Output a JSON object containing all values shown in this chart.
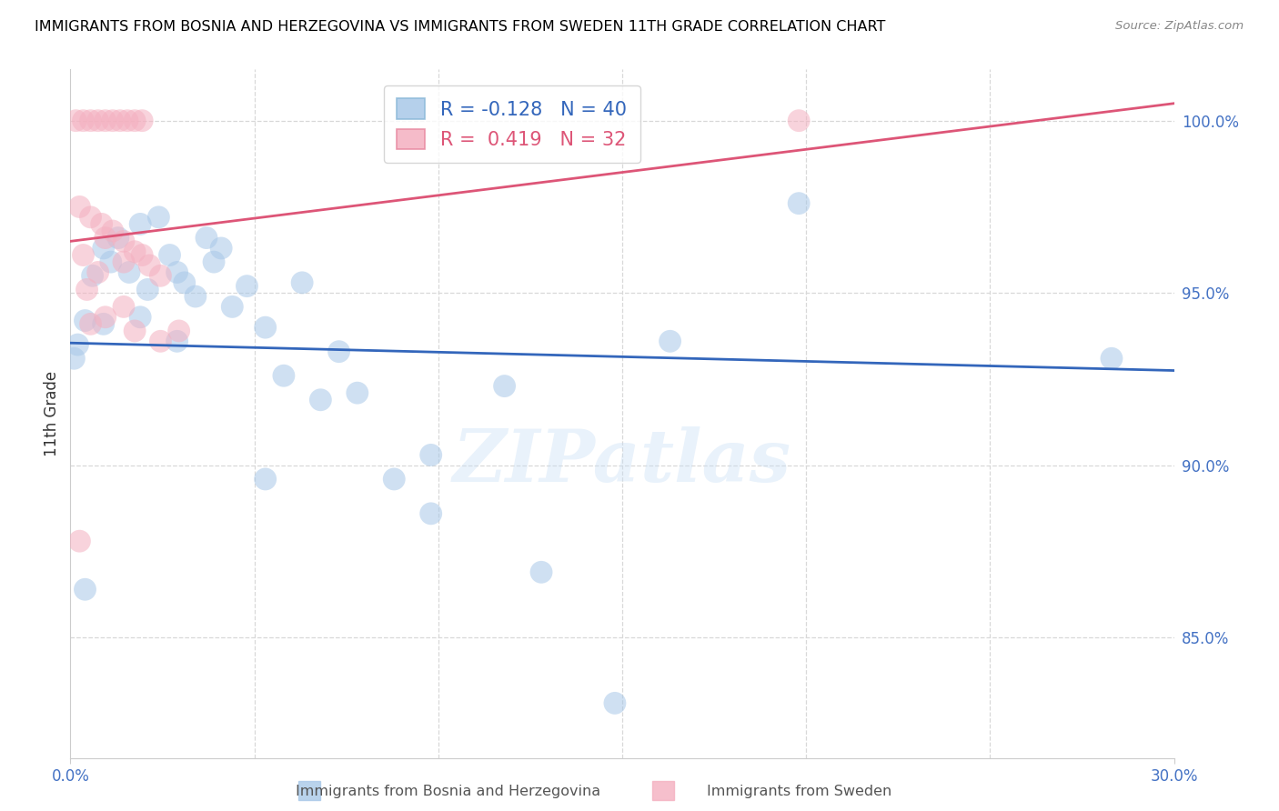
{
  "title": "IMMIGRANTS FROM BOSNIA AND HERZEGOVINA VS IMMIGRANTS FROM SWEDEN 11TH GRADE CORRELATION CHART",
  "source": "Source: ZipAtlas.com",
  "ylabel": "11th Grade",
  "x_min": 0.0,
  "x_max": 30.0,
  "y_min": 81.5,
  "y_max": 101.5,
  "y_ticks": [
    85.0,
    90.0,
    95.0,
    100.0
  ],
  "y_tick_labels": [
    "85.0%",
    "90.0%",
    "95.0%",
    "100.0%"
  ],
  "x_ticks": [
    0,
    30
  ],
  "x_tick_labels": [
    "0.0%",
    "30.0%"
  ],
  "x_minor_ticks": [
    5,
    10,
    15,
    20,
    25
  ],
  "blue_R": -0.128,
  "blue_N": 40,
  "pink_R": 0.419,
  "pink_N": 32,
  "blue_label": "Immigrants from Bosnia and Herzegovina",
  "pink_label": "Immigrants from Sweden",
  "blue_color": "#a8c8e8",
  "pink_color": "#f4b0c0",
  "blue_line_color": "#3366bb",
  "pink_line_color": "#dd5577",
  "watermark": "ZIPatlas",
  "blue_dots": [
    [
      0.2,
      93.5
    ],
    [
      0.4,
      94.2
    ],
    [
      0.6,
      95.5
    ],
    [
      0.9,
      96.3
    ],
    [
      1.1,
      95.9
    ],
    [
      1.3,
      96.6
    ],
    [
      1.6,
      95.6
    ],
    [
      1.9,
      97.0
    ],
    [
      2.1,
      95.1
    ],
    [
      2.4,
      97.2
    ],
    [
      2.7,
      96.1
    ],
    [
      2.9,
      95.6
    ],
    [
      3.1,
      95.3
    ],
    [
      3.4,
      94.9
    ],
    [
      3.7,
      96.6
    ],
    [
      3.9,
      95.9
    ],
    [
      4.1,
      96.3
    ],
    [
      4.4,
      94.6
    ],
    [
      4.8,
      95.2
    ],
    [
      5.3,
      94.0
    ],
    [
      5.8,
      92.6
    ],
    [
      6.3,
      95.3
    ],
    [
      6.8,
      91.9
    ],
    [
      7.3,
      93.3
    ],
    [
      7.8,
      92.1
    ],
    [
      8.8,
      89.6
    ],
    [
      9.8,
      88.6
    ],
    [
      11.8,
      92.3
    ],
    [
      12.8,
      86.9
    ],
    [
      14.8,
      83.1
    ],
    [
      0.9,
      94.1
    ],
    [
      1.9,
      94.3
    ],
    [
      0.4,
      86.4
    ],
    [
      2.9,
      93.6
    ],
    [
      0.1,
      93.1
    ],
    [
      16.3,
      93.6
    ],
    [
      19.8,
      97.6
    ],
    [
      28.3,
      93.1
    ],
    [
      5.3,
      89.6
    ],
    [
      9.8,
      90.3
    ]
  ],
  "pink_dots": [
    [
      0.15,
      100.0
    ],
    [
      0.35,
      100.0
    ],
    [
      0.55,
      100.0
    ],
    [
      0.75,
      100.0
    ],
    [
      0.95,
      100.0
    ],
    [
      1.15,
      100.0
    ],
    [
      1.35,
      100.0
    ],
    [
      1.55,
      100.0
    ],
    [
      1.75,
      100.0
    ],
    [
      1.95,
      100.0
    ],
    [
      0.25,
      97.5
    ],
    [
      0.55,
      97.2
    ],
    [
      0.85,
      97.0
    ],
    [
      1.15,
      96.8
    ],
    [
      1.45,
      96.5
    ],
    [
      1.75,
      96.2
    ],
    [
      2.15,
      95.8
    ],
    [
      2.45,
      95.5
    ],
    [
      0.35,
      96.1
    ],
    [
      0.75,
      95.6
    ],
    [
      0.95,
      96.6
    ],
    [
      1.45,
      95.9
    ],
    [
      1.95,
      96.1
    ],
    [
      0.45,
      95.1
    ],
    [
      0.25,
      87.8
    ],
    [
      0.95,
      94.3
    ],
    [
      1.45,
      94.6
    ],
    [
      1.75,
      93.9
    ],
    [
      0.55,
      94.1
    ],
    [
      2.45,
      93.6
    ],
    [
      19.8,
      100.0
    ],
    [
      2.95,
      93.9
    ]
  ],
  "blue_line": [
    [
      0.0,
      93.55
    ],
    [
      30.0,
      92.75
    ]
  ],
  "pink_line": [
    [
      0.0,
      96.5
    ],
    [
      30.0,
      100.5
    ]
  ]
}
